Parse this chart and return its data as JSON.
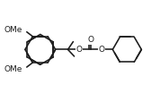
{
  "bg": "#ffffff",
  "lc": "#1c1c1c",
  "lw": 1.15,
  "fs": 6.5,
  "fw": 1.78,
  "fh": 1.04,
  "dpi": 100,
  "xlim": [
    0.0,
    10.2
  ],
  "ylim": [
    0.8,
    5.8
  ]
}
